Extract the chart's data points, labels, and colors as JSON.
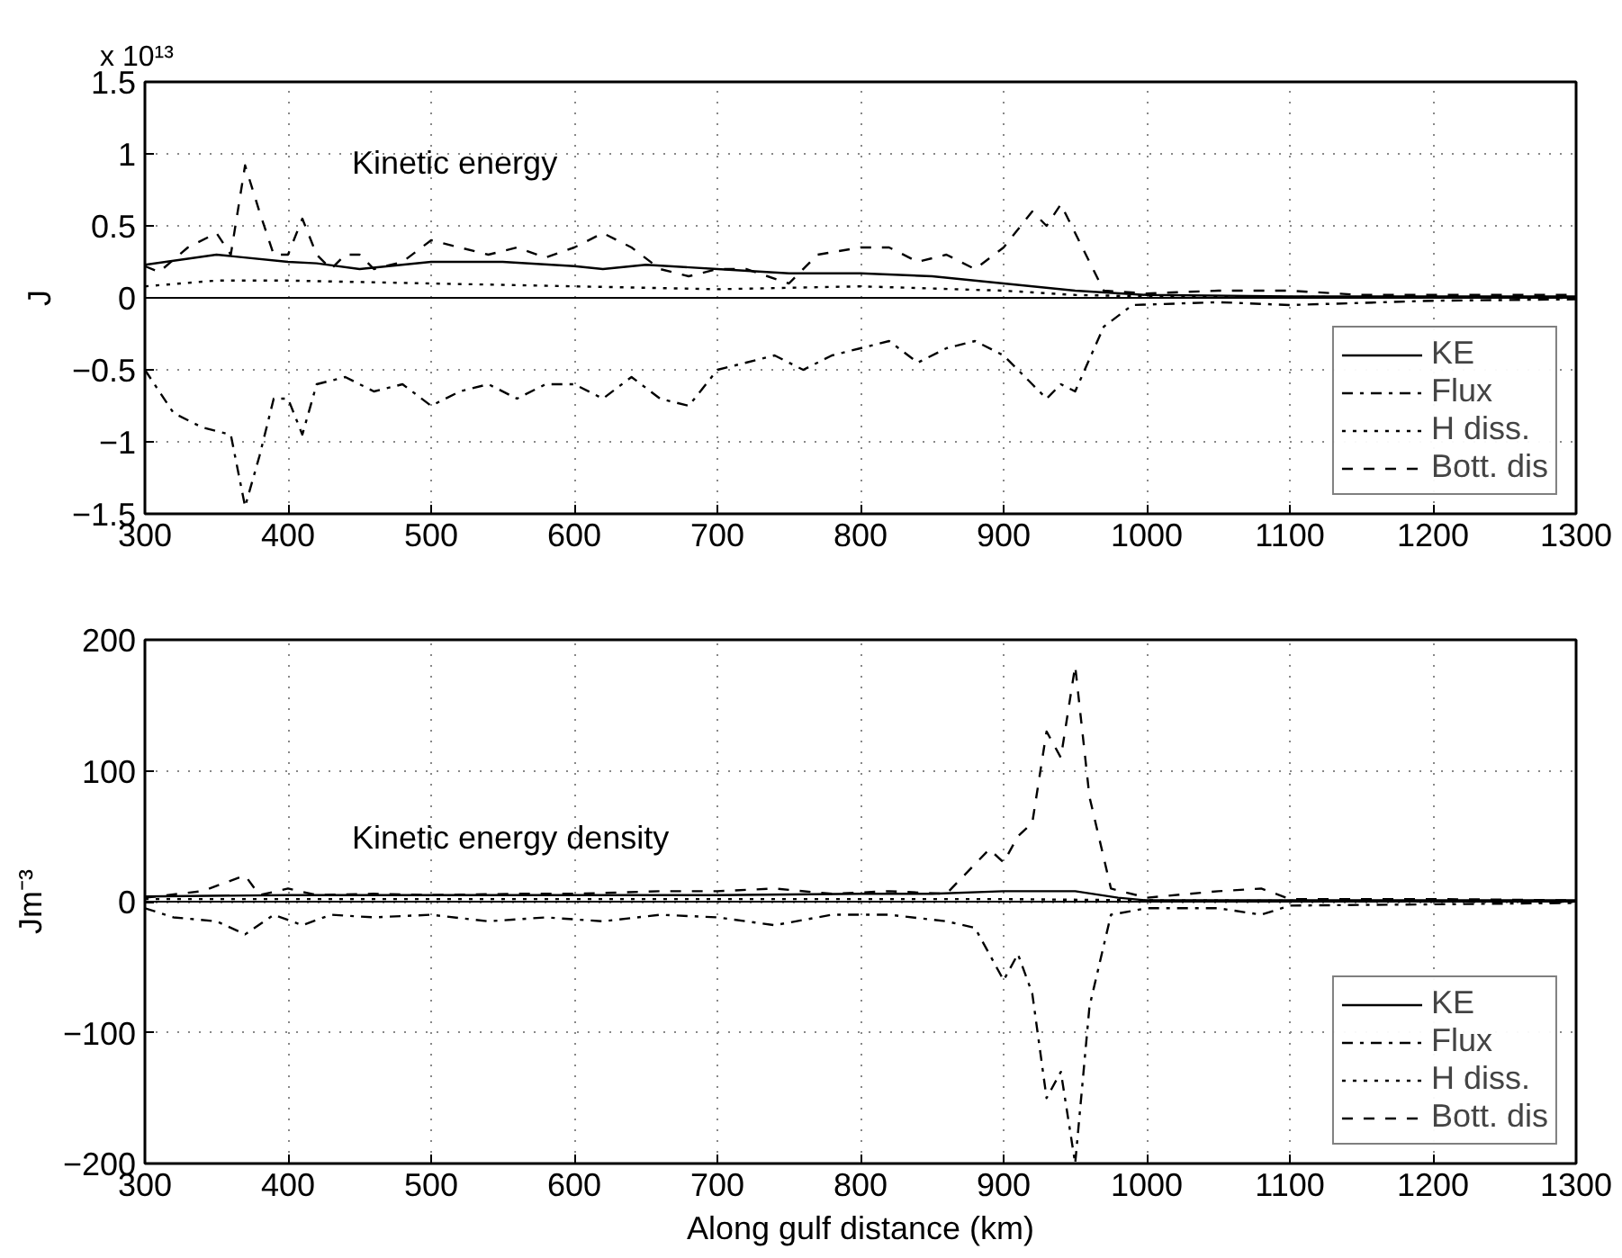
{
  "chart_data": [
    {
      "type": "line",
      "ylabel": "J",
      "annotations": [
        "Kinetic energy",
        "x 10¹³"
      ],
      "xlim": [
        300,
        1300
      ],
      "ylim": [
        -1.5,
        1.5
      ],
      "xticks": [
        300,
        400,
        500,
        600,
        700,
        800,
        900,
        1000,
        1100,
        1200,
        1300
      ],
      "yticks": [
        -1.5,
        -1,
        -0.5,
        0,
        0.5,
        1,
        1.5
      ],
      "grid": true,
      "legend": "bottom right",
      "marker": "none",
      "ref_lines": [
        {
          "axis": "y",
          "value": 0,
          "label": null,
          "color": "#000000",
          "line_style": "solid"
        }
      ],
      "series": [
        {
          "name": "KE",
          "color": "#000000",
          "line_style": "solid",
          "x": [
            300,
            350,
            400,
            420,
            450,
            500,
            550,
            600,
            620,
            650,
            700,
            750,
            800,
            850,
            900,
            950,
            1000,
            1100,
            1300
          ],
          "values": [
            0.23,
            0.3,
            0.25,
            0.24,
            0.2,
            0.25,
            0.25,
            0.22,
            0.2,
            0.23,
            0.2,
            0.17,
            0.17,
            0.15,
            0.1,
            0.05,
            0.02,
            0.01,
            0.01
          ]
        },
        {
          "name": "Flux",
          "color": "#000000",
          "line_style": "dashdot",
          "x": [
            300,
            320,
            340,
            360,
            370,
            380,
            390,
            400,
            410,
            420,
            440,
            460,
            480,
            500,
            520,
            540,
            560,
            580,
            600,
            620,
            640,
            660,
            680,
            700,
            720,
            740,
            760,
            780,
            800,
            820,
            840,
            860,
            880,
            900,
            920,
            930,
            940,
            950,
            970,
            990,
            1050,
            1100,
            1200,
            1300
          ],
          "values": [
            -0.5,
            -0.8,
            -0.9,
            -0.95,
            -1.45,
            -1.1,
            -0.7,
            -0.7,
            -0.95,
            -0.6,
            -0.55,
            -0.65,
            -0.6,
            -0.75,
            -0.65,
            -0.6,
            -0.7,
            -0.6,
            -0.6,
            -0.7,
            -0.55,
            -0.7,
            -0.75,
            -0.5,
            -0.45,
            -0.4,
            -0.5,
            -0.4,
            -0.35,
            -0.3,
            -0.45,
            -0.35,
            -0.3,
            -0.4,
            -0.6,
            -0.7,
            -0.6,
            -0.65,
            -0.2,
            -0.05,
            -0.03,
            -0.05,
            -0.02,
            -0.01
          ]
        },
        {
          "name": "H diss.",
          "color": "#000000",
          "line_style": "dotted",
          "x": [
            300,
            350,
            400,
            500,
            600,
            700,
            800,
            900,
            950,
            1000,
            1300
          ],
          "values": [
            0.08,
            0.12,
            0.12,
            0.1,
            0.08,
            0.06,
            0.08,
            0.05,
            0.02,
            0.01,
            0.0
          ]
        },
        {
          "name": "Bott. dis",
          "color": "#000000",
          "line_style": "dashed",
          "x": [
            300,
            310,
            330,
            350,
            360,
            370,
            380,
            390,
            400,
            410,
            420,
            430,
            440,
            450,
            460,
            480,
            500,
            520,
            540,
            560,
            580,
            600,
            620,
            640,
            660,
            680,
            700,
            720,
            750,
            770,
            800,
            820,
            840,
            860,
            880,
            900,
            920,
            930,
            940,
            950,
            970,
            1000,
            1050,
            1100,
            1150,
            1200,
            1300
          ],
          "values": [
            0.22,
            0.18,
            0.35,
            0.45,
            0.3,
            0.92,
            0.6,
            0.3,
            0.3,
            0.55,
            0.3,
            0.2,
            0.3,
            0.3,
            0.2,
            0.25,
            0.4,
            0.35,
            0.3,
            0.35,
            0.28,
            0.35,
            0.45,
            0.35,
            0.2,
            0.15,
            0.2,
            0.2,
            0.1,
            0.3,
            0.35,
            0.35,
            0.25,
            0.3,
            0.2,
            0.35,
            0.6,
            0.5,
            0.65,
            0.45,
            0.05,
            0.03,
            0.05,
            0.05,
            0.02,
            0.02,
            0.02
          ]
        }
      ]
    },
    {
      "type": "line",
      "xlabel": "Along gulf distance (km)",
      "ylabel": "Jm⁻³",
      "annotations": [
        "Kinetic energy density"
      ],
      "xlim": [
        300,
        1300
      ],
      "ylim": [
        -200,
        200
      ],
      "xticks": [
        300,
        400,
        500,
        600,
        700,
        800,
        900,
        1000,
        1100,
        1200,
        1300
      ],
      "yticks": [
        -200,
        -100,
        0,
        100,
        200
      ],
      "grid": true,
      "legend": "bottom right",
      "marker": "none",
      "ref_lines": [
        {
          "axis": "y",
          "value": 0,
          "label": null,
          "color": "#000000",
          "line_style": "solid"
        }
      ],
      "series": [
        {
          "name": "KE",
          "color": "#000000",
          "line_style": "solid",
          "x": [
            300,
            400,
            500,
            600,
            700,
            800,
            850,
            900,
            950,
            980,
            1000,
            1100,
            1300
          ],
          "values": [
            4,
            5,
            5,
            5,
            5,
            6,
            6,
            8,
            8,
            3,
            1,
            1,
            1
          ]
        },
        {
          "name": "Flux",
          "color": "#000000",
          "line_style": "dashdot",
          "x": [
            300,
            320,
            350,
            370,
            390,
            410,
            430,
            460,
            500,
            540,
            580,
            620,
            660,
            700,
            740,
            780,
            820,
            860,
            880,
            900,
            910,
            920,
            930,
            940,
            950,
            960,
            975,
            1000,
            1050,
            1080,
            1100,
            1200,
            1300
          ],
          "values": [
            -5,
            -12,
            -15,
            -25,
            -10,
            -18,
            -10,
            -12,
            -10,
            -15,
            -12,
            -15,
            -10,
            -12,
            -18,
            -10,
            -10,
            -15,
            -20,
            -60,
            -40,
            -70,
            -150,
            -130,
            -200,
            -80,
            -10,
            -5,
            -5,
            -10,
            -3,
            -2,
            -1
          ]
        },
        {
          "name": "H diss.",
          "color": "#000000",
          "line_style": "dotted",
          "x": [
            300,
            500,
            700,
            900,
            1000,
            1300
          ],
          "values": [
            2,
            2,
            2,
            2,
            1,
            0
          ]
        },
        {
          "name": "Bott. dis",
          "color": "#000000",
          "line_style": "dashed",
          "x": [
            300,
            340,
            370,
            380,
            400,
            420,
            460,
            500,
            560,
            600,
            660,
            700,
            740,
            780,
            820,
            860,
            890,
            900,
            910,
            920,
            930,
            940,
            950,
            960,
            975,
            1000,
            1050,
            1080,
            1100,
            1200,
            1300
          ],
          "values": [
            3,
            8,
            20,
            5,
            10,
            5,
            6,
            5,
            6,
            6,
            8,
            8,
            10,
            6,
            8,
            6,
            40,
            30,
            50,
            60,
            130,
            110,
            180,
            80,
            10,
            3,
            8,
            10,
            2,
            2,
            1
          ]
        }
      ]
    }
  ]
}
